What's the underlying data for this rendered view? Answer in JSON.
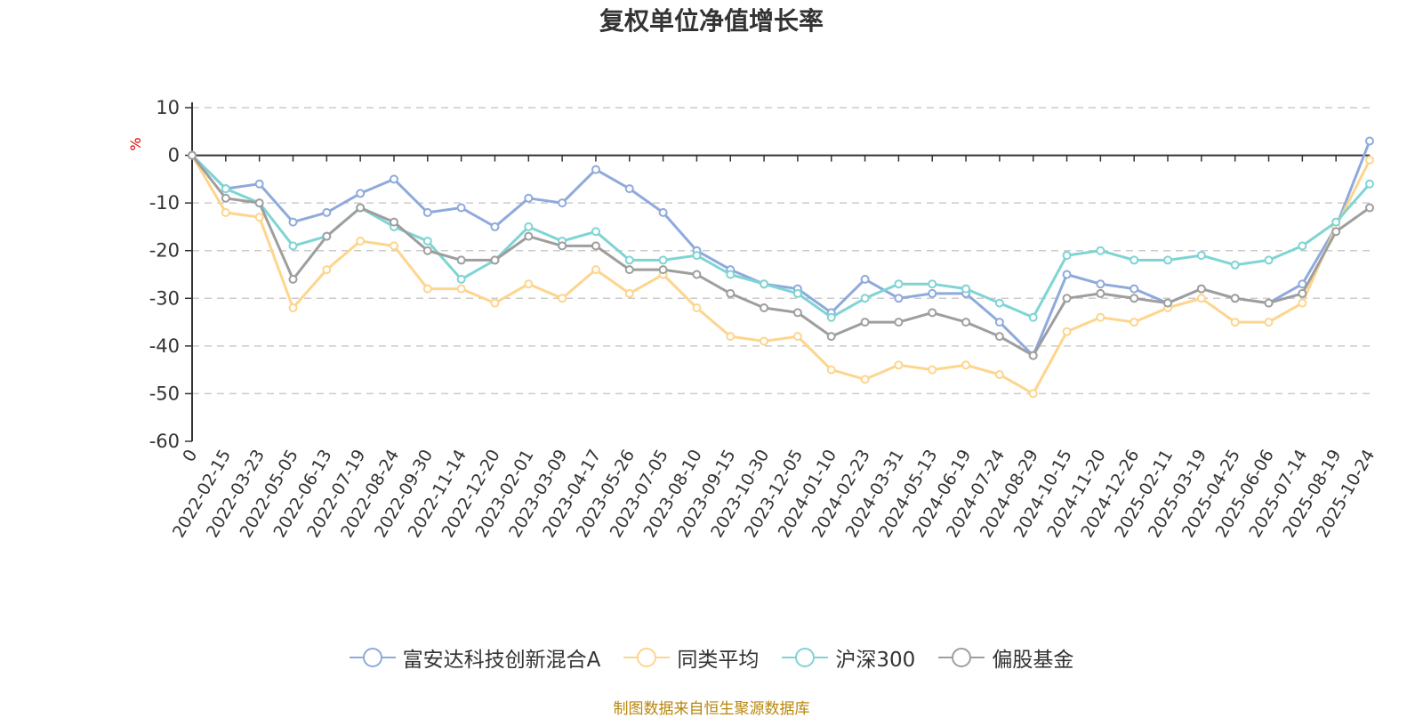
{
  "chart_data": {
    "type": "line",
    "title": "复权单位净值增长率",
    "ylabel": "%",
    "ylim": [
      -60,
      10
    ],
    "yticks": [
      10,
      0,
      -10,
      -20,
      -30,
      -40,
      -50,
      -60
    ],
    "categories": [
      "0",
      "2022-02-15",
      "2022-03-23",
      "2022-05-05",
      "2022-06-13",
      "2022-07-19",
      "2022-08-24",
      "2022-09-30",
      "2022-11-14",
      "2022-12-20",
      "2023-02-01",
      "2023-03-09",
      "2023-04-17",
      "2023-05-26",
      "2023-07-05",
      "2023-08-10",
      "2023-09-15",
      "2023-10-30",
      "2023-12-05",
      "2024-01-10",
      "2024-02-23",
      "2024-03-31",
      "2024-05-13",
      "2024-06-19",
      "2024-07-24",
      "2024-08-29",
      "2024-10-15",
      "2024-11-20",
      "2024-12-26",
      "2025-02-11",
      "2025-03-19",
      "2025-04-25",
      "2025-06-06",
      "2025-07-14",
      "2025-08-19",
      "2025-10-24"
    ],
    "series": [
      {
        "name": "富安达科技创新混合A",
        "color": "#8eaadc",
        "values": [
          0,
          -7,
          -6,
          -14,
          -12,
          -8,
          -5,
          -12,
          -11,
          -15,
          -9,
          -10,
          -3,
          -7,
          -12,
          -20,
          -24,
          -27,
          -28,
          -33,
          -26,
          -30,
          -29,
          -29,
          -35,
          -42,
          -25,
          -27,
          -28,
          -31,
          -28,
          -30,
          -31,
          -27,
          -15,
          3
        ]
      },
      {
        "name": "同类平均",
        "color": "#fdd58c",
        "values": [
          0,
          -12,
          -13,
          -32,
          -24,
          -18,
          -19,
          -28,
          -28,
          -31,
          -27,
          -30,
          -24,
          -29,
          -25,
          -32,
          -38,
          -39,
          -38,
          -45,
          -47,
          -44,
          -45,
          -44,
          -46,
          -50,
          -37,
          -34,
          -35,
          -32,
          -30,
          -35,
          -35,
          -31,
          -15,
          -1
        ]
      },
      {
        "name": "沪深300",
        "color": "#7fd4d4",
        "values": [
          0,
          -7,
          -10,
          -19,
          -17,
          -11,
          -15,
          -18,
          -26,
          -22,
          -15,
          -18,
          -16,
          -22,
          -22,
          -21,
          -25,
          -27,
          -29,
          -34,
          -30,
          -27,
          -27,
          -28,
          -31,
          -34,
          -21,
          -20,
          -22,
          -22,
          -21,
          -23,
          -22,
          -19,
          -14,
          -6
        ]
      },
      {
        "name": "偏股基金",
        "color": "#9e9e9e",
        "values": [
          0,
          -9,
          -10,
          -26,
          -17,
          -11,
          -14,
          -20,
          -22,
          -22,
          -17,
          -19,
          -19,
          -24,
          -24,
          -25,
          -29,
          -32,
          -33,
          -38,
          -35,
          -35,
          -33,
          -35,
          -38,
          -42,
          -30,
          -29,
          -30,
          -31,
          -28,
          -30,
          -31,
          -29,
          -16,
          -11
        ]
      }
    ]
  },
  "legend": {
    "items": [
      {
        "label": "富安达科技创新混合A",
        "color": "#8eaadc"
      },
      {
        "label": "同类平均",
        "color": "#fdd58c"
      },
      {
        "label": "沪深300",
        "color": "#7fd4d4"
      },
      {
        "label": "偏股基金",
        "color": "#9e9e9e"
      }
    ]
  },
  "source": "制图数据来自恒生聚源数据库"
}
